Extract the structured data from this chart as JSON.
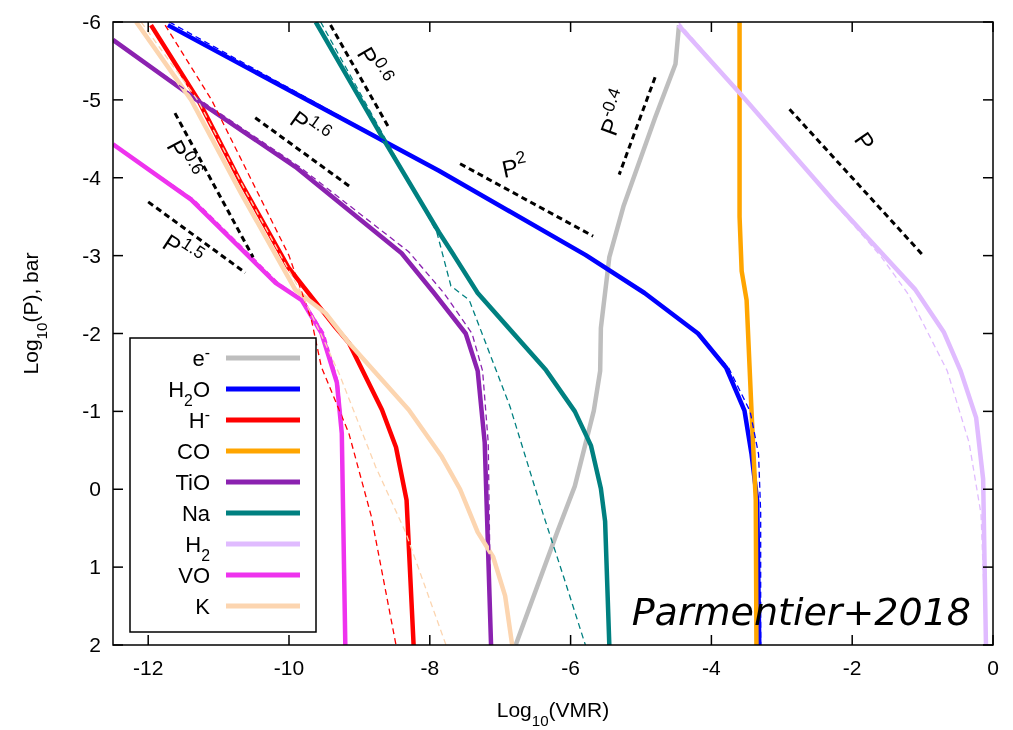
{
  "chart_data": {
    "type": "line",
    "xlabel": "Log$_{10}$(VMR)",
    "ylabel": "Log$_{10}$(P), bar",
    "xlim": [
      -12.5,
      0
    ],
    "xticks": [
      -12,
      -10,
      -8,
      -6,
      -4,
      -2,
      0
    ],
    "ylim": [
      2,
      -6
    ],
    "yticks": [
      -6,
      -5,
      -4,
      -3,
      -2,
      -1,
      0,
      1,
      2
    ],
    "legend": "bottom left",
    "series": [
      {
        "name": "e$^{-}$",
        "color": "#bebebe",
        "x": [
          -4.46,
          -4.51,
          -4.8,
          -5.25,
          -5.45,
          -5.57,
          -5.58,
          -5.67,
          -5.94,
          -6.19,
          -6.78
        ],
        "values": [
          -5.96,
          -5.46,
          -4.77,
          -3.63,
          -2.98,
          -2.07,
          -1.52,
          -1.01,
          -0.04,
          0.55,
          2
        ]
      },
      {
        "name": "H$_{2}$O",
        "color": "#0000ff",
        "x": [
          -11.72,
          -7.87,
          -5.79,
          -4.95,
          -4.19,
          -3.79,
          -3.53,
          -3.43,
          -3.35,
          -3.32
        ],
        "values": [
          -5.96,
          -4.09,
          -3.01,
          -2.52,
          -2.0,
          -1.56,
          -1.01,
          -0.45,
          0.14,
          2
        ]
      },
      {
        "name": "H$^{-}$",
        "color": "#ff0000",
        "x": [
          -11.96,
          -11.29,
          -10.68,
          -10.01,
          -9.34,
          -9.15,
          -8.68,
          -8.48,
          -8.33,
          -8.23
        ],
        "values": [
          -5.96,
          -5.0,
          -3.93,
          -2.85,
          -2.08,
          -1.88,
          -1.02,
          -0.54,
          0.14,
          2
        ]
      },
      {
        "name": "CO",
        "color": "#ffa500",
        "x": [
          -3.6,
          -3.6,
          -3.57,
          -3.5,
          -3.43,
          -3.37,
          -3.36
        ],
        "values": [
          -6,
          -3.5,
          -2.8,
          -2.43,
          -1.0,
          0.14,
          2
        ]
      },
      {
        "name": "TiO",
        "color": "#8b22b0",
        "x": [
          -12.5,
          -11.25,
          -9.91,
          -8.4,
          -7.94,
          -7.49,
          -7.32,
          -7.22,
          -7.13
        ],
        "values": [
          -5.77,
          -4.96,
          -4.14,
          -3.03,
          -2.52,
          -2.0,
          -1.52,
          -0.6,
          2
        ]
      },
      {
        "name": "Na",
        "color": "#008080",
        "x": [
          -9.62,
          -8.63,
          -7.87,
          -7.67,
          -7.32,
          -6.35,
          -5.94,
          -5.71,
          -5.57,
          -5.51,
          -5.45
        ],
        "values": [
          -6,
          -4.45,
          -3.3,
          -3.02,
          -2.52,
          -1.53,
          -1.0,
          -0.56,
          -0.01,
          0.41,
          2
        ]
      },
      {
        "name": "H$_{2}$",
        "color": "#e0bbff",
        "x": [
          -4.47,
          -3.57,
          -2.28,
          -1.11,
          -0.7,
          -0.46,
          -0.24,
          -0.14,
          -0.1
        ],
        "values": [
          -5.96,
          -5.06,
          -3.72,
          -2.57,
          -2.02,
          -1.52,
          -0.92,
          -0.13,
          2
        ]
      },
      {
        "name": "VO",
        "color": "#ee33ee",
        "x": [
          -12.5,
          -11.39,
          -10.19,
          -9.82,
          -9.54,
          -9.32,
          -9.25,
          -9.2
        ],
        "values": [
          -4.43,
          -3.72,
          -2.65,
          -2.43,
          -2.01,
          -1.37,
          -0.72,
          2
        ]
      },
      {
        "name": "K",
        "color": "#fcd5b0",
        "x": [
          -12.17,
          -11.39,
          -10.68,
          -9.91,
          -9.48,
          -9.15,
          -8.3,
          -7.83,
          -7.57,
          -7.32,
          -7.1,
          -6.93,
          -6.83
        ],
        "values": [
          -6,
          -5.0,
          -3.8,
          -2.56,
          -2.26,
          -1.88,
          -1.02,
          -0.42,
          0.0,
          0.55,
          0.87,
          1.37,
          2
        ]
      },
      {
        "color": "#0000ff",
        "line_style": "dashed",
        "x": [
          -11.7,
          -7.87,
          -5.79,
          -4.95,
          -4.19,
          -3.75,
          -3.45,
          -3.33,
          -3.3,
          -3.3
        ],
        "values": [
          -6,
          -4.09,
          -3.01,
          -2.52,
          -2.0,
          -1.55,
          -1.0,
          -0.45,
          0.3,
          2
        ]
      },
      {
        "color": "#ff0000",
        "line_style": "dashed",
        "x": [
          -11.76,
          -11.1,
          -10.55,
          -10.0,
          -9.68,
          -9.54,
          -9.15,
          -8.83,
          -8.48
        ],
        "values": [
          -5.96,
          -5.0,
          -4.0,
          -3.0,
          -2.17,
          -1.57,
          -0.72,
          0.35,
          2
        ]
      },
      {
        "color": "#8b22b0",
        "line_style": "dashed",
        "x": [
          -12.5,
          -11.2,
          -9.85,
          -8.3,
          -7.8,
          -7.4,
          -7.25,
          -7.17,
          -7.13
        ],
        "values": [
          -5.77,
          -4.96,
          -4.14,
          -3.05,
          -2.52,
          -2.0,
          -1.52,
          -0.6,
          2
        ]
      },
      {
        "color": "#008080",
        "line_style": "dashed",
        "x": [
          -9.55,
          -8.6,
          -7.9,
          -7.7,
          -7.44,
          -6.86,
          -6.39,
          -6.09,
          -5.79
        ],
        "values": [
          -6,
          -4.45,
          -3.3,
          -2.61,
          -2.43,
          -1.06,
          0.32,
          1.15,
          2
        ]
      },
      {
        "color": "#e0bbff",
        "line_style": "dashed",
        "x": [
          -4.47,
          -3.57,
          -2.3,
          -1.6,
          -1.2,
          -0.65,
          -0.34,
          -0.17,
          -0.1
        ],
        "values": [
          -6,
          -5.06,
          -3.72,
          -3.0,
          -2.5,
          -1.52,
          -0.6,
          0.32,
          2
        ]
      },
      {
        "color": "#ee33ee",
        "line_style": "dashed",
        "x": [
          -12.5,
          -11.35,
          -10.15,
          -9.8,
          -9.5,
          -9.3,
          -9.24,
          -9.2
        ],
        "values": [
          -4.43,
          -3.72,
          -2.65,
          -2.43,
          -2.0,
          -1.37,
          -0.72,
          2
        ]
      },
      {
        "color": "#fcd5b0",
        "line_style": "dashed",
        "x": [
          -12.1,
          -11.3,
          -10.6,
          -9.85,
          -9.55,
          -9.29,
          -8.77,
          -8.34,
          -7.77
        ],
        "values": [
          -6,
          -5.0,
          -3.8,
          -2.56,
          -2.0,
          -1.49,
          -0.29,
          0.56,
          2
        ]
      },
      {
        "color": "#000000",
        "line_style": "dashed",
        "x": [
          -9.41,
          -8.58
        ],
        "values": [
          -5.96,
          -4.64
        ]
      },
      {
        "color": "#000000",
        "line_style": "dashed",
        "x": [
          -10.48,
          -9.11
        ],
        "values": [
          -4.77,
          -3.87
        ]
      },
      {
        "color": "#000000",
        "line_style": "dashed",
        "x": [
          -11.62,
          -10.51
        ],
        "values": [
          -4.83,
          -2.98
        ]
      },
      {
        "color": "#000000",
        "line_style": "dashed",
        "x": [
          -12.0,
          -10.62
        ],
        "values": [
          -3.69,
          -2.78
        ]
      },
      {
        "color": "#000000",
        "line_style": "dashed",
        "x": [
          -7.57,
          -5.68
        ],
        "values": [
          -4.18,
          -3.25
        ]
      },
      {
        "color": "#000000",
        "line_style": "dashed",
        "x": [
          -4.8,
          -5.31
        ],
        "values": [
          -5.29,
          -4.04
        ]
      },
      {
        "color": "#000000",
        "line_style": "dashed",
        "x": [
          -2.89,
          -1.01
        ],
        "values": [
          -4.88,
          -3.02
        ]
      }
    ],
    "annotations": [
      {
        "text": "P$^{0.6}$",
        "x": -9.0,
        "y": -5.3
      },
      {
        "text": "P$^{1.6}$",
        "x": -9.8,
        "y": -4.32
      },
      {
        "text": "P$^{0.6}$",
        "x": -11.07,
        "y": -3.9
      },
      {
        "text": "P$^{1.5}$",
        "x": -11.31,
        "y": -3.24
      },
      {
        "text": "P$^{2}$",
        "x": -6.63,
        "y": -3.72
      },
      {
        "text": "P$^{-0.4}$",
        "x": -5.06,
        "y": -4.67
      },
      {
        "text": "P",
        "x": -1.95,
        "y": -3.95
      },
      "Parmentier+2018"
    ]
  }
}
